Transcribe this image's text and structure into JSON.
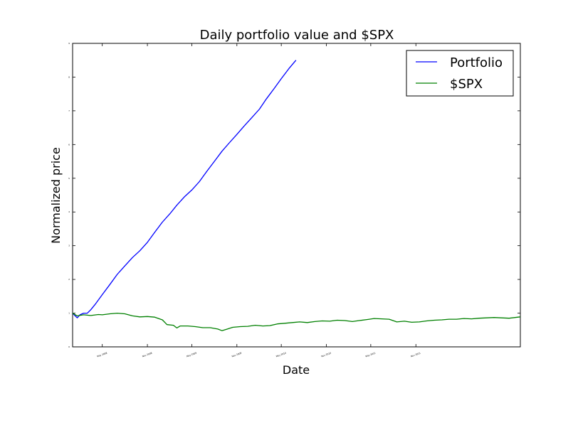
{
  "chart_data": {
    "type": "line",
    "title": "Daily portfolio value and $SPX",
    "xlabel": "Date",
    "ylabel": "Normalized price",
    "x_range": [
      "2008-01-01",
      "2012-12-31"
    ],
    "ylim": [
      0,
      9
    ],
    "yticks": [
      0,
      1,
      2,
      3,
      4,
      5,
      6,
      7,
      8,
      9
    ],
    "xticks": [
      {
        "date": "2008-05-01",
        "label": "May 2008"
      },
      {
        "date": "2008-11-01",
        "label": "Nov 2008"
      },
      {
        "date": "2009-05-01",
        "label": "May 2009"
      },
      {
        "date": "2009-11-01",
        "label": "Nov 2009"
      },
      {
        "date": "2010-05-01",
        "label": "May 2010"
      },
      {
        "date": "2010-11-01",
        "label": "Nov 2010"
      },
      {
        "date": "2011-05-01",
        "label": "May 2011"
      },
      {
        "date": "2011-11-01",
        "label": "Nov 2011"
      }
    ],
    "legend_position": "top-right",
    "grid": false,
    "series": [
      {
        "name": "Portfolio",
        "color": "#0000ff",
        "points": [
          [
            "2008-01-01",
            1.0
          ],
          [
            "2008-01-10",
            0.93
          ],
          [
            "2008-01-20",
            0.86
          ],
          [
            "2008-01-31",
            0.95
          ],
          [
            "2008-02-15",
            1.0
          ],
          [
            "2008-03-01",
            1.0
          ],
          [
            "2008-03-15",
            1.1
          ],
          [
            "2008-04-01",
            1.25
          ],
          [
            "2008-05-01",
            1.55
          ],
          [
            "2008-06-01",
            1.85
          ],
          [
            "2008-07-01",
            2.15
          ],
          [
            "2008-08-01",
            2.4
          ],
          [
            "2008-09-01",
            2.65
          ],
          [
            "2008-10-01",
            2.85
          ],
          [
            "2008-11-01",
            3.1
          ],
          [
            "2008-12-01",
            3.4
          ],
          [
            "2009-01-01",
            3.7
          ],
          [
            "2009-02-01",
            3.95
          ],
          [
            "2009-03-01",
            4.2
          ],
          [
            "2009-04-01",
            4.45
          ],
          [
            "2009-05-01",
            4.65
          ],
          [
            "2009-06-01",
            4.9
          ],
          [
            "2009-07-01",
            5.2
          ],
          [
            "2009-08-01",
            5.5
          ],
          [
            "2009-09-01",
            5.8
          ],
          [
            "2009-10-01",
            6.05
          ],
          [
            "2009-11-01",
            6.3
          ],
          [
            "2009-12-01",
            6.55
          ],
          [
            "2010-01-01",
            6.8
          ],
          [
            "2010-02-01",
            7.05
          ],
          [
            "2010-03-01",
            7.35
          ],
          [
            "2010-04-01",
            7.65
          ],
          [
            "2010-05-01",
            7.95
          ],
          [
            "2010-06-01",
            8.25
          ],
          [
            "2010-06-30",
            8.5
          ]
        ]
      },
      {
        "name": "$SPX",
        "color": "#008000",
        "points": [
          [
            "2008-01-01",
            1.0
          ],
          [
            "2008-01-20",
            0.92
          ],
          [
            "2008-02-15",
            0.95
          ],
          [
            "2008-03-15",
            0.93
          ],
          [
            "2008-04-15",
            0.96
          ],
          [
            "2008-05-01",
            0.95
          ],
          [
            "2008-06-01",
            0.98
          ],
          [
            "2008-07-01",
            1.0
          ],
          [
            "2008-08-01",
            0.98
          ],
          [
            "2008-09-01",
            0.92
          ],
          [
            "2008-10-01",
            0.89
          ],
          [
            "2008-11-01",
            0.9
          ],
          [
            "2008-12-01",
            0.88
          ],
          [
            "2009-01-01",
            0.8
          ],
          [
            "2009-01-20",
            0.66
          ],
          [
            "2009-02-15",
            0.64
          ],
          [
            "2009-03-01",
            0.56
          ],
          [
            "2009-03-15",
            0.62
          ],
          [
            "2009-04-15",
            0.62
          ],
          [
            "2009-05-15",
            0.6
          ],
          [
            "2009-06-15",
            0.57
          ],
          [
            "2009-07-15",
            0.57
          ],
          [
            "2009-08-15",
            0.53
          ],
          [
            "2009-09-01",
            0.48
          ],
          [
            "2009-09-20",
            0.52
          ],
          [
            "2009-10-15",
            0.58
          ],
          [
            "2009-11-15",
            0.6
          ],
          [
            "2009-12-15",
            0.61
          ],
          [
            "2010-01-15",
            0.64
          ],
          [
            "2010-02-15",
            0.62
          ],
          [
            "2010-03-15",
            0.63
          ],
          [
            "2010-04-15",
            0.68
          ],
          [
            "2010-05-15",
            0.7
          ],
          [
            "2010-06-15",
            0.72
          ],
          [
            "2010-07-15",
            0.74
          ],
          [
            "2010-08-15",
            0.72
          ],
          [
            "2010-09-15",
            0.75
          ],
          [
            "2010-10-15",
            0.77
          ],
          [
            "2010-11-15",
            0.76
          ],
          [
            "2010-12-15",
            0.79
          ],
          [
            "2011-01-15",
            0.78
          ],
          [
            "2011-02-15",
            0.75
          ],
          [
            "2011-03-15",
            0.78
          ],
          [
            "2011-04-15",
            0.81
          ],
          [
            "2011-05-15",
            0.84
          ],
          [
            "2011-06-15",
            0.83
          ],
          [
            "2011-07-15",
            0.82
          ],
          [
            "2011-08-15",
            0.74
          ],
          [
            "2011-09-15",
            0.76
          ],
          [
            "2011-10-15",
            0.73
          ],
          [
            "2011-11-15",
            0.74
          ],
          [
            "2011-12-15",
            0.77
          ],
          [
            "2012-01-15",
            0.79
          ],
          [
            "2012-02-15",
            0.8
          ],
          [
            "2012-03-15",
            0.82
          ],
          [
            "2012-04-15",
            0.82
          ],
          [
            "2012-05-15",
            0.84
          ],
          [
            "2012-06-15",
            0.83
          ],
          [
            "2012-07-15",
            0.85
          ],
          [
            "2012-08-15",
            0.86
          ],
          [
            "2012-09-15",
            0.87
          ],
          [
            "2012-10-15",
            0.86
          ],
          [
            "2012-11-15",
            0.85
          ],
          [
            "2012-12-31",
            0.89
          ]
        ]
      }
    ]
  }
}
